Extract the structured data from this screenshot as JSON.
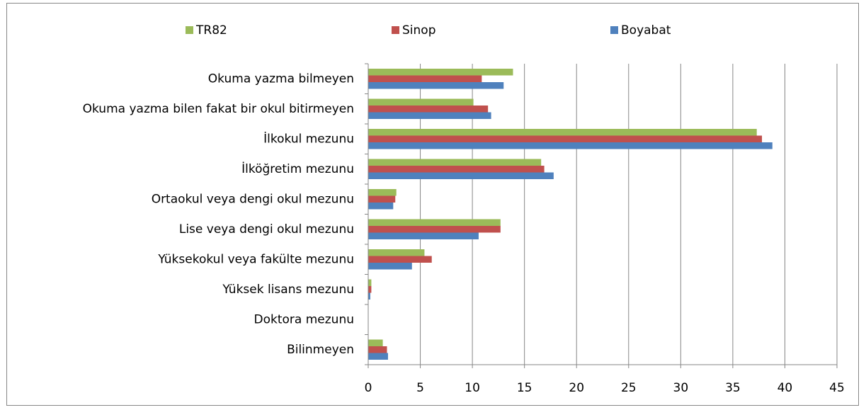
{
  "chart_data": {
    "type": "hbar",
    "categories": [
      "Okuma yazma bilmeyen",
      "Okuma yazma bilen fakat bir okul bitirmeyen",
      "İlkokul mezunu",
      "İlköğretim mezunu",
      "Ortaokul veya dengi okul mezunu",
      "Lise veya dengi okul mezunu",
      "Yüksekokul veya fakülte mezunu",
      "Yüksek lisans mezunu",
      "Doktora mezunu",
      "Bilinmeyen"
    ],
    "series": [
      {
        "name": "TR82",
        "color": "#9bbb59",
        "values": [
          13.9,
          10.1,
          37.3,
          16.6,
          2.7,
          12.7,
          5.4,
          0.3,
          0,
          1.4
        ]
      },
      {
        "name": "Sinop",
        "color": "#c0504d",
        "values": [
          10.9,
          11.5,
          37.8,
          16.9,
          2.6,
          12.7,
          6.1,
          0.3,
          0,
          1.8
        ]
      },
      {
        "name": "Boyabat",
        "color": "#4f81bd",
        "values": [
          13.0,
          11.8,
          38.8,
          17.8,
          2.4,
          10.6,
          4.2,
          0.2,
          0,
          1.9
        ]
      }
    ],
    "xlim": [
      0,
      45
    ],
    "xticks": [
      0,
      5,
      10,
      15,
      20,
      25,
      30,
      35,
      40,
      45
    ],
    "grid": true,
    "legend": "top"
  }
}
